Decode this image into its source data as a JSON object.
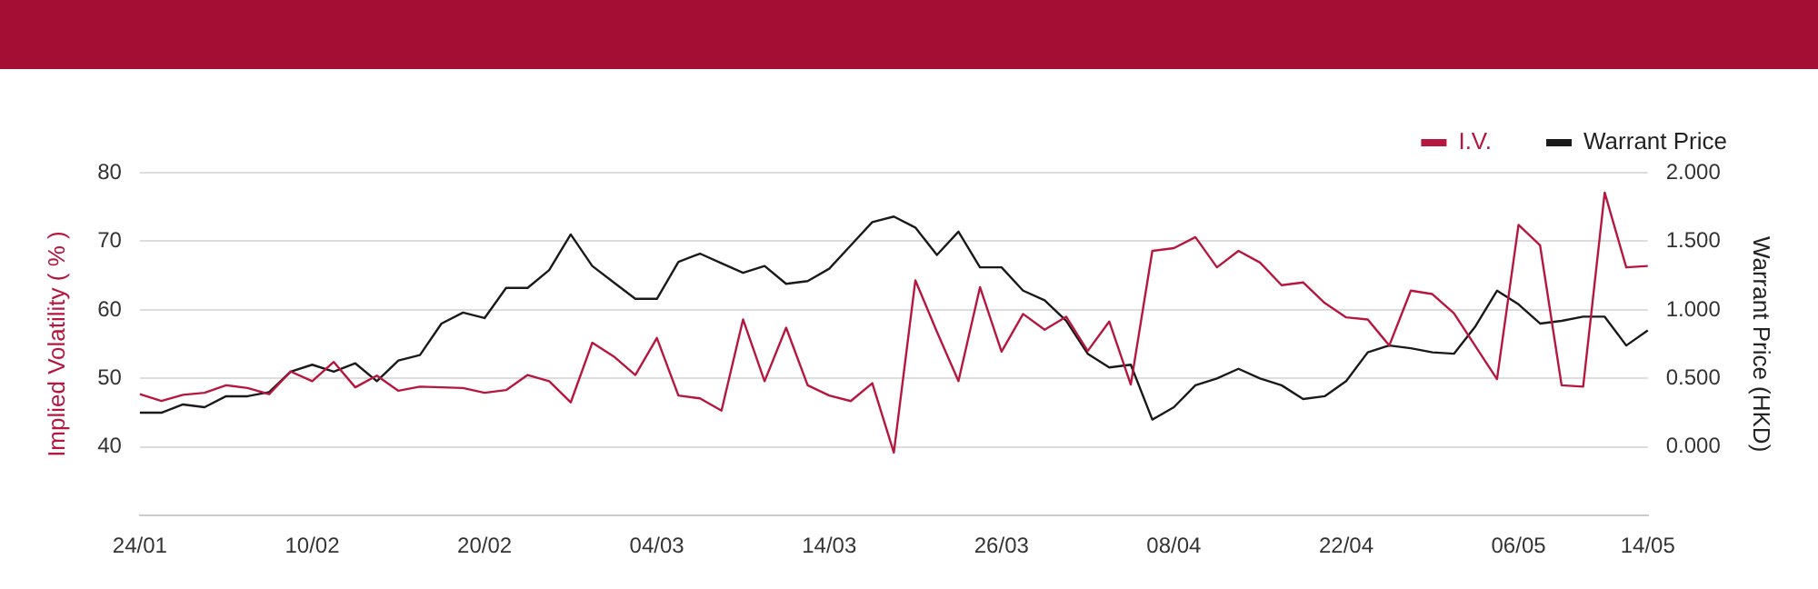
{
  "chart_data": {
    "type": "line",
    "ylabel": "Implied Volatility ( % )",
    "y2label": "Warrant Price (HKD)",
    "categories": [
      "24/01",
      null,
      null,
      null,
      null,
      null,
      null,
      null,
      "10/02",
      null,
      null,
      null,
      null,
      null,
      null,
      null,
      "20/02",
      null,
      null,
      null,
      null,
      null,
      null,
      null,
      "04/03",
      null,
      null,
      null,
      null,
      null,
      null,
      null,
      "14/03",
      null,
      null,
      null,
      null,
      null,
      null,
      null,
      "26/03",
      null,
      null,
      null,
      null,
      null,
      null,
      null,
      "08/04",
      null,
      null,
      null,
      null,
      null,
      null,
      null,
      "22/04",
      null,
      null,
      null,
      null,
      null,
      null,
      null,
      "06/05",
      null,
      null,
      null,
      null,
      null,
      "14/05"
    ],
    "series": [
      {
        "name": "I.V.",
        "color": "#b5173f",
        "axis": "y",
        "values": [
          47.7,
          46.7,
          47.6,
          47.9,
          49.0,
          48.6,
          47.7,
          51.0,
          49.6,
          52.4,
          48.7,
          50.4,
          48.2,
          48.8,
          48.7,
          48.6,
          47.9,
          48.3,
          50.5,
          49.6,
          46.5,
          55.2,
          53.2,
          50.5,
          55.9,
          47.5,
          47.1,
          45.3,
          58.6,
          49.6,
          57.4,
          49.0,
          47.5,
          46.7,
          49.3,
          39.2,
          64.3,
          56.8,
          49.6,
          63.3,
          53.9,
          59.4,
          57.1,
          59.0,
          54.0,
          58.3,
          49.1,
          68.6,
          69.0,
          70.6,
          66.2,
          68.6,
          66.9,
          63.6,
          64.0,
          61.0,
          58.9,
          58.6,
          54.8,
          62.8,
          62.3,
          59.5,
          54.7,
          49.9,
          72.4,
          69.4,
          49.0,
          48.8,
          77.1,
          66.2,
          66.4
        ]
      },
      {
        "name": "Warrant Price",
        "color": "#1a1a1a",
        "axis": "y2",
        "values": [
          0.25,
          0.25,
          0.31,
          0.29,
          0.37,
          0.37,
          0.4,
          0.55,
          0.6,
          0.55,
          0.61,
          0.48,
          0.63,
          0.67,
          0.9,
          0.98,
          0.94,
          1.16,
          1.16,
          1.29,
          1.55,
          1.32,
          1.2,
          1.08,
          1.08,
          1.35,
          1.41,
          1.34,
          1.27,
          1.32,
          1.19,
          1.21,
          1.3,
          1.47,
          1.64,
          1.68,
          1.6,
          1.4,
          1.57,
          1.31,
          1.31,
          1.14,
          1.07,
          0.92,
          0.68,
          0.58,
          0.6,
          0.2,
          0.29,
          0.45,
          0.5,
          0.57,
          0.5,
          0.45,
          0.35,
          0.37,
          0.48,
          0.69,
          0.74,
          0.72,
          0.69,
          0.68,
          0.88,
          1.14,
          1.04,
          0.9,
          0.92,
          0.95,
          0.95,
          0.74,
          0.85
        ]
      }
    ],
    "ylim": [
      30,
      80
    ],
    "yticks": [
      40,
      50,
      60,
      70,
      80
    ],
    "y2lim": [
      -0.5,
      2.0
    ],
    "y2ticks": [
      {
        "value": 0,
        "label": "0.000"
      },
      {
        "value": 0.5,
        "label": "0.500"
      },
      {
        "value": 1,
        "label": "1.000"
      },
      {
        "value": 1.5,
        "label": "1.500"
      },
      {
        "value": 2,
        "label": "2.000"
      }
    ],
    "grid": "y",
    "legend": "top right",
    "marker": "none"
  }
}
